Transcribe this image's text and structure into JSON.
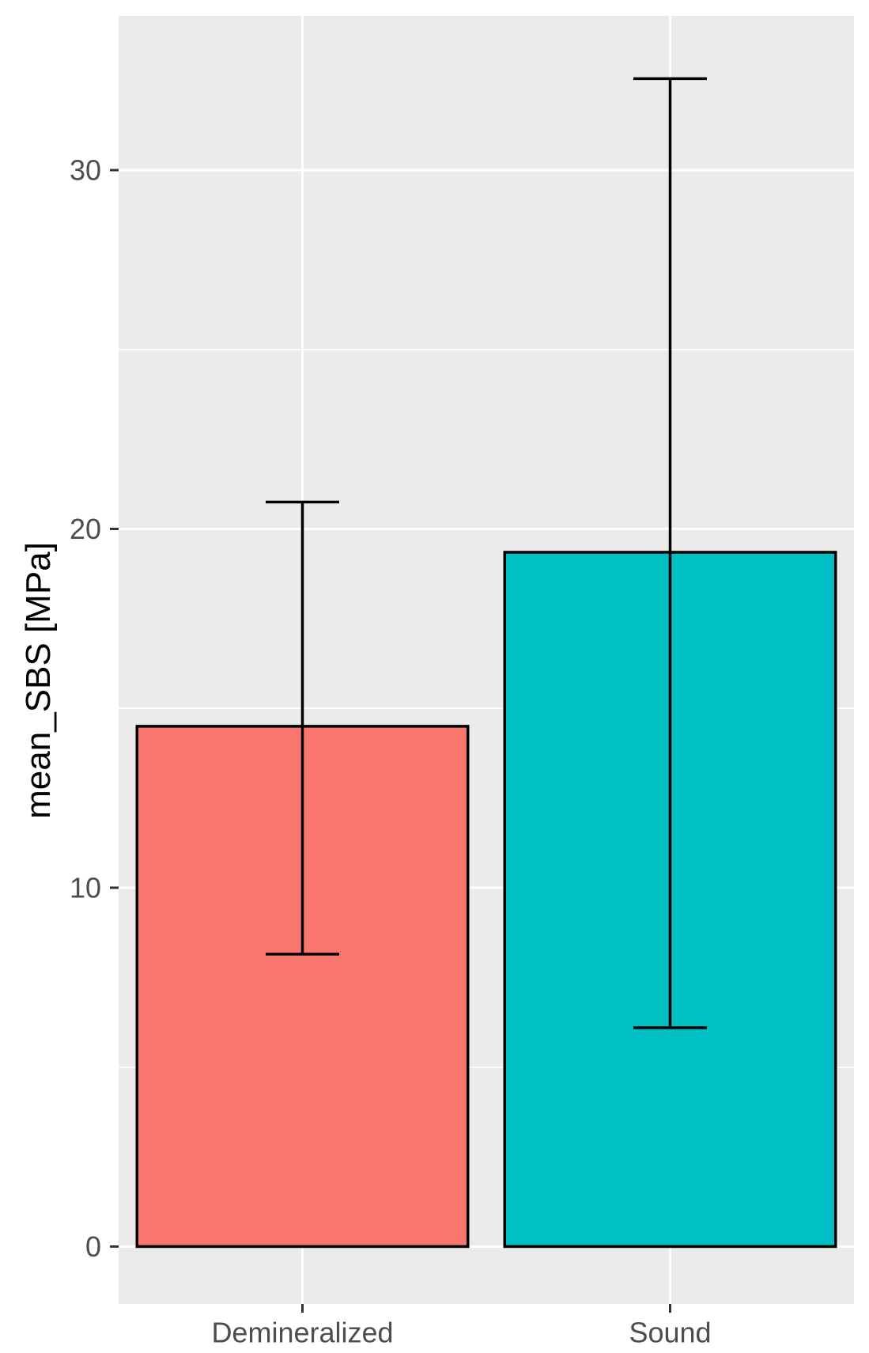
{
  "chart_data": {
    "type": "bar",
    "title": "",
    "xlabel": "",
    "ylabel": "mean_SBS [MPa]",
    "categories": [
      "Demineralized",
      "Sound"
    ],
    "values": [
      14.5,
      19.35
    ],
    "error_lower": [
      8.15,
      6.1
    ],
    "error_upper": [
      20.75,
      32.55
    ],
    "colors": [
      "#F8766D",
      "#00BFC4"
    ],
    "ylim": [
      -1.6,
      34.3
    ],
    "yticks": [
      0,
      10,
      20,
      30
    ],
    "ytick_labels": [
      "0",
      "10",
      "20",
      "30"
    ],
    "grid": true,
    "panel_background": "#EBEBEB",
    "legend": "none"
  }
}
